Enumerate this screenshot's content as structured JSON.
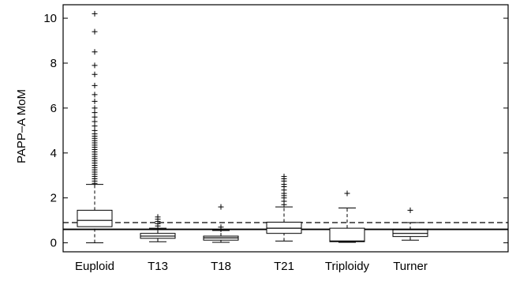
{
  "chart_data": {
    "type": "box",
    "title": "",
    "xlabel": "",
    "ylabel": "PAPP–A MoM",
    "ylim": [
      -0.4,
      10.6
    ],
    "yticks": [
      0,
      2,
      4,
      6,
      8,
      10
    ],
    "categories": [
      "Euploid",
      "T13",
      "T18",
      "T21",
      "Triploidy",
      "Turner"
    ],
    "boxes": [
      {
        "name": "Euploid",
        "whisker_low": 0.0,
        "q1": 0.72,
        "median": 1.0,
        "q3": 1.45,
        "whisker_high": 2.6,
        "outliers": [
          2.65,
          2.75,
          2.85,
          2.95,
          3.05,
          3.15,
          3.25,
          3.35,
          3.45,
          3.55,
          3.65,
          3.75,
          3.85,
          3.95,
          4.05,
          4.15,
          4.25,
          4.35,
          4.45,
          4.55,
          4.65,
          4.75,
          4.85,
          5.0,
          5.2,
          5.4,
          5.6,
          5.8,
          6.0,
          6.3,
          6.6,
          7.0,
          7.5,
          7.9,
          8.5,
          9.4,
          10.2
        ]
      },
      {
        "name": "T13",
        "whisker_low": 0.05,
        "q1": 0.2,
        "median": 0.3,
        "q3": 0.42,
        "whisker_high": 0.65,
        "outliers": [
          0.75,
          0.85,
          0.95,
          1.05,
          1.15
        ]
      },
      {
        "name": "T18",
        "whisker_low": 0.02,
        "q1": 0.12,
        "median": 0.22,
        "q3": 0.3,
        "whisker_high": 0.55,
        "outliers": [
          0.6,
          0.7,
          1.6
        ]
      },
      {
        "name": "T21",
        "whisker_low": 0.08,
        "q1": 0.42,
        "median": 0.65,
        "q3": 0.92,
        "whisker_high": 1.6,
        "outliers": [
          1.7,
          1.85,
          2.0,
          2.1,
          2.2,
          2.35,
          2.5,
          2.6,
          2.75,
          2.85,
          2.95
        ]
      },
      {
        "name": "Triploidy",
        "whisker_low": 0.02,
        "q1": 0.05,
        "median": 0.08,
        "q3": 0.65,
        "whisker_high": 1.55,
        "outliers": [
          2.2
        ]
      },
      {
        "name": "Turner",
        "whisker_low": 0.12,
        "q1": 0.28,
        "median": 0.42,
        "q3": 0.58,
        "whisker_high": 0.9,
        "outliers": [
          1.45
        ]
      }
    ],
    "reference_lines": [
      {
        "style": "dashed",
        "value": 0.9
      },
      {
        "style": "solid",
        "value": 0.6
      }
    ],
    "grid": false,
    "legend": "none",
    "colors": {
      "box": "#000000",
      "median": "#000000",
      "outlier": "#000000"
    }
  }
}
